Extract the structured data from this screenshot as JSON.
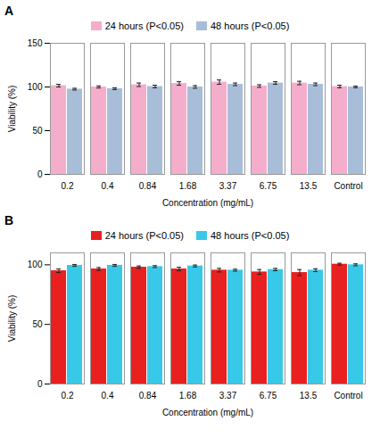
{
  "chart_data": [
    {
      "type": "bar",
      "title": "A",
      "categories": [
        "0.2",
        "0.4",
        "0.84",
        "1.68",
        "3.37",
        "6.75",
        "13.5",
        "Control"
      ],
      "series": [
        {
          "name": "24 hours (P<0.05)",
          "color": "#F4AECB",
          "values": [
            101.5,
            100.0,
            102.5,
            104.0,
            105.5,
            101.0,
            104.5,
            100.5
          ],
          "errors": [
            1.5,
            1.2,
            2.0,
            2.0,
            2.5,
            1.5,
            2.0,
            1.5
          ]
        },
        {
          "name": "48 hours (P<0.05)",
          "color": "#A8BDD8",
          "values": [
            97.5,
            98.0,
            100.5,
            100.0,
            103.0,
            104.5,
            103.0,
            100.0
          ],
          "errors": [
            1.0,
            1.0,
            1.5,
            1.5,
            1.5,
            1.5,
            1.5,
            1.0
          ]
        }
      ],
      "ylim": [
        0,
        150
      ],
      "yticks": [
        0,
        50,
        100,
        150
      ],
      "ylabel": "Viability (%)",
      "xlabel": "Concentration (mg/mL)",
      "grid": false,
      "legend": "top"
    },
    {
      "type": "bar",
      "title": "B",
      "categories": [
        "0.2",
        "0.4",
        "0.84",
        "1.68",
        "3.37",
        "6.75",
        "13.5",
        "Control"
      ],
      "series": [
        {
          "name": "24 hours (P<0.05)",
          "color": "#E82020",
          "values": [
            95.0,
            96.5,
            98.0,
            96.5,
            95.5,
            94.0,
            93.5,
            100.5
          ],
          "errors": [
            1.5,
            1.2,
            1.0,
            1.5,
            1.5,
            2.0,
            2.5,
            0.8
          ]
        },
        {
          "name": "48 hours (P<0.05)",
          "color": "#38C8E8",
          "values": [
            99.5,
            99.5,
            98.5,
            99.0,
            95.5,
            96.0,
            95.5,
            100.0
          ],
          "errors": [
            0.8,
            0.8,
            0.8,
            0.8,
            0.8,
            1.0,
            1.2,
            0.8
          ]
        }
      ],
      "ylim": [
        0,
        110
      ],
      "yticks": [
        0,
        50,
        100
      ],
      "ylabel": "Viability (%)",
      "xlabel": "Concentration (mg/mL)",
      "grid": false,
      "legend": "top"
    }
  ]
}
